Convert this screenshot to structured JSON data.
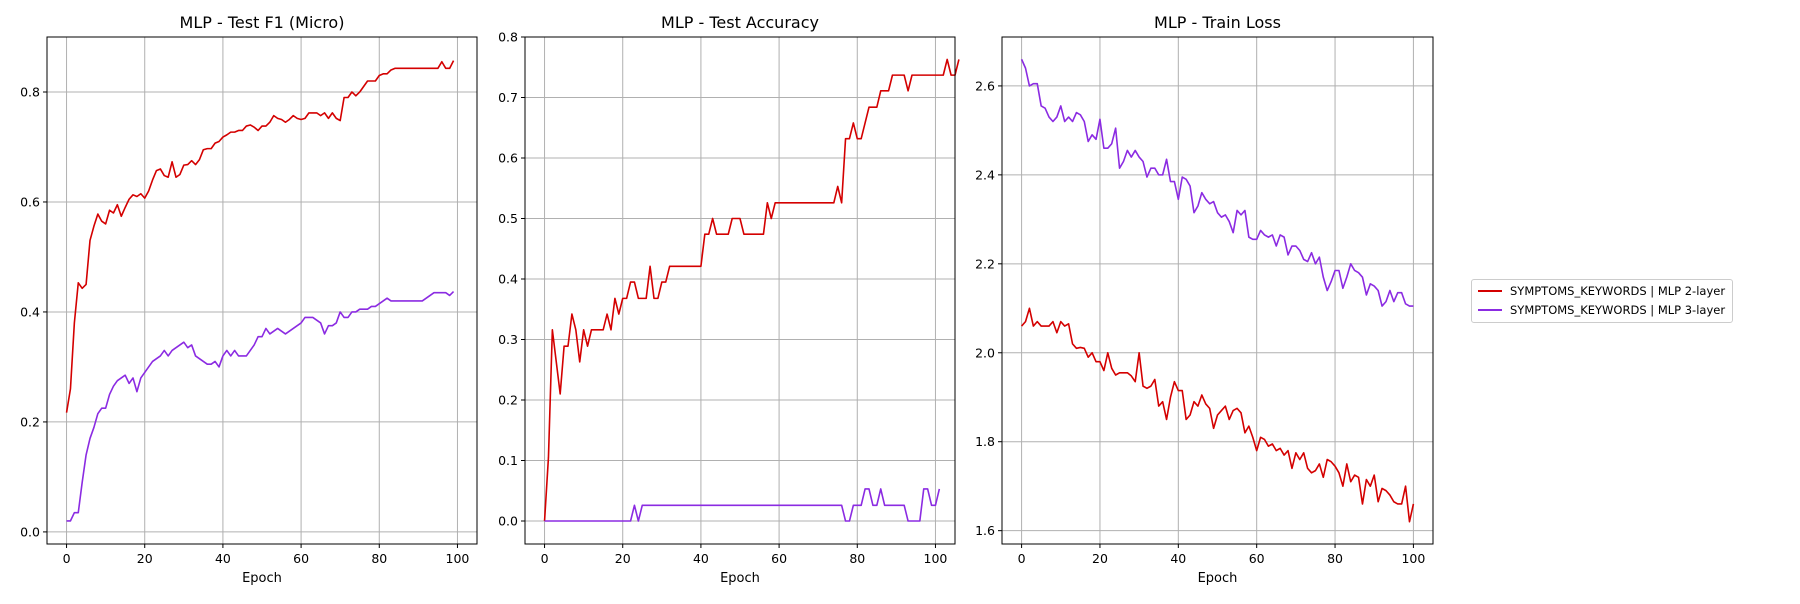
{
  "legend": {
    "items": [
      {
        "label": "SYMPTOMS_KEYWORDS | MLP 2-layer",
        "color": "#d40000"
      },
      {
        "label": "SYMPTOMS_KEYWORDS | MLP 3-layer",
        "color": "#8b2be2"
      }
    ]
  },
  "chart_data": [
    {
      "type": "line",
      "title": "MLP - Test F1 (Micro)",
      "xlabel": "Epoch",
      "ylabel": "",
      "xlim": [
        -5,
        105
      ],
      "ylim": [
        -0.022,
        0.9
      ],
      "xticks": [
        0,
        20,
        40,
        60,
        80,
        100
      ],
      "yticks": [
        0.0,
        0.2,
        0.4,
        0.6,
        0.8
      ],
      "ytick_labels": [
        "0.0",
        "0.2",
        "0.4",
        "0.6",
        "0.8"
      ],
      "grid": true,
      "series": [
        {
          "name": "SYMPTOMS_KEYWORDS | MLP 2-layer",
          "color": "#d40000",
          "values": [
            0.217,
            0.26,
            0.38,
            0.453,
            0.443,
            0.45,
            0.53,
            0.556,
            0.578,
            0.565,
            0.56,
            0.585,
            0.58,
            0.595,
            0.574,
            0.59,
            0.605,
            0.613,
            0.61,
            0.615,
            0.607,
            0.62,
            0.64,
            0.657,
            0.66,
            0.648,
            0.645,
            0.673,
            0.645,
            0.65,
            0.667,
            0.668,
            0.675,
            0.668,
            0.677,
            0.695,
            0.697,
            0.697,
            0.707,
            0.71,
            0.718,
            0.722,
            0.727,
            0.727,
            0.73,
            0.73,
            0.738,
            0.74,
            0.736,
            0.73,
            0.738,
            0.738,
            0.745,
            0.757,
            0.752,
            0.75,
            0.745,
            0.75,
            0.757,
            0.752,
            0.75,
            0.752,
            0.762,
            0.762,
            0.762,
            0.757,
            0.762,
            0.752,
            0.762,
            0.752,
            0.748,
            0.79,
            0.79,
            0.8,
            0.793,
            0.8,
            0.81,
            0.82,
            0.82,
            0.82,
            0.83,
            0.833,
            0.833,
            0.84,
            0.843,
            0.843,
            0.843,
            0.843,
            0.843,
            0.843,
            0.843,
            0.843,
            0.843,
            0.843,
            0.843,
            0.843,
            0.855,
            0.843,
            0.843,
            0.857
          ]
        },
        {
          "name": "SYMPTOMS_KEYWORDS | MLP 3-layer",
          "color": "#8b2be2",
          "values": [
            0.02,
            0.02,
            0.035,
            0.035,
            0.09,
            0.14,
            0.17,
            0.19,
            0.215,
            0.225,
            0.225,
            0.25,
            0.265,
            0.275,
            0.28,
            0.285,
            0.27,
            0.28,
            0.255,
            0.28,
            0.29,
            0.3,
            0.31,
            0.315,
            0.32,
            0.33,
            0.32,
            0.33,
            0.335,
            0.34,
            0.345,
            0.335,
            0.34,
            0.32,
            0.315,
            0.31,
            0.305,
            0.305,
            0.31,
            0.3,
            0.32,
            0.33,
            0.32,
            0.33,
            0.32,
            0.32,
            0.32,
            0.33,
            0.34,
            0.355,
            0.355,
            0.37,
            0.36,
            0.365,
            0.37,
            0.365,
            0.36,
            0.365,
            0.37,
            0.375,
            0.38,
            0.39,
            0.39,
            0.39,
            0.385,
            0.38,
            0.36,
            0.375,
            0.375,
            0.38,
            0.4,
            0.39,
            0.39,
            0.4,
            0.4,
            0.405,
            0.405,
            0.405,
            0.41,
            0.41,
            0.415,
            0.42,
            0.425,
            0.42,
            0.42,
            0.42,
            0.42,
            0.42,
            0.42,
            0.42,
            0.42,
            0.42,
            0.425,
            0.43,
            0.435,
            0.435,
            0.435,
            0.435,
            0.43,
            0.437
          ]
        }
      ]
    },
    {
      "type": "line",
      "title": "MLP - Test Accuracy",
      "xlabel": "Epoch",
      "ylabel": "",
      "xlim": [
        -5,
        105
      ],
      "ylim": [
        -0.038,
        0.8
      ],
      "xticks": [
        0,
        20,
        40,
        60,
        80,
        100
      ],
      "yticks": [
        0.0,
        0.1,
        0.2,
        0.3,
        0.4,
        0.5,
        0.6,
        0.7,
        0.8
      ],
      "ytick_labels": [
        "0.0",
        "0.1",
        "0.2",
        "0.3",
        "0.4",
        "0.5",
        "0.6",
        "0.7",
        "0.8"
      ],
      "grid": true,
      "series": [
        {
          "name": "SYMPTOMS_KEYWORDS | MLP 2-layer",
          "color": "#d40000",
          "values": [
            0.0,
            0.105,
            0.316,
            0.263,
            0.21,
            0.289,
            0.289,
            0.342,
            0.316,
            0.263,
            0.316,
            0.289,
            0.316,
            0.316,
            0.316,
            0.316,
            0.342,
            0.316,
            0.368,
            0.342,
            0.368,
            0.368,
            0.395,
            0.395,
            0.368,
            0.368,
            0.368,
            0.421,
            0.368,
            0.368,
            0.395,
            0.395,
            0.421,
            0.421,
            0.421,
            0.421,
            0.421,
            0.421,
            0.421,
            0.421,
            0.421,
            0.474,
            0.474,
            0.5,
            0.474,
            0.474,
            0.474,
            0.474,
            0.5,
            0.5,
            0.5,
            0.474,
            0.474,
            0.474,
            0.474,
            0.474,
            0.474,
            0.526,
            0.5,
            0.526,
            0.526,
            0.526,
            0.526,
            0.526,
            0.526,
            0.526,
            0.526,
            0.526,
            0.526,
            0.526,
            0.526,
            0.526,
            0.526,
            0.526,
            0.526,
            0.553,
            0.526,
            0.632,
            0.632,
            0.658,
            0.632,
            0.632,
            0.658,
            0.684,
            0.684,
            0.684,
            0.711,
            0.711,
            0.711,
            0.737,
            0.737,
            0.737,
            0.737,
            0.711,
            0.737,
            0.737,
            0.737,
            0.737,
            0.737,
            0.737,
            0.737,
            0.737,
            0.737,
            0.763,
            0.737,
            0.737,
            0.763
          ]
        },
        {
          "name": "SYMPTOMS_KEYWORDS | MLP 3-layer",
          "color": "#8b2be2",
          "values": [
            0.0,
            0.0,
            0.0,
            0.0,
            0.0,
            0.0,
            0.0,
            0.0,
            0.0,
            0.0,
            0.0,
            0.0,
            0.0,
            0.0,
            0.0,
            0.0,
            0.0,
            0.0,
            0.0,
            0.0,
            0.0,
            0.0,
            0.0,
            0.026,
            0.0,
            0.026,
            0.026,
            0.026,
            0.026,
            0.026,
            0.026,
            0.026,
            0.026,
            0.026,
            0.026,
            0.026,
            0.026,
            0.026,
            0.026,
            0.026,
            0.026,
            0.026,
            0.026,
            0.026,
            0.026,
            0.026,
            0.026,
            0.026,
            0.026,
            0.026,
            0.026,
            0.026,
            0.026,
            0.026,
            0.026,
            0.026,
            0.026,
            0.026,
            0.026,
            0.026,
            0.026,
            0.026,
            0.026,
            0.026,
            0.026,
            0.026,
            0.026,
            0.026,
            0.026,
            0.026,
            0.026,
            0.026,
            0.026,
            0.026,
            0.026,
            0.026,
            0.026,
            0.0,
            0.0,
            0.026,
            0.026,
            0.026,
            0.053,
            0.053,
            0.026,
            0.026,
            0.053,
            0.026,
            0.026,
            0.026,
            0.026,
            0.026,
            0.026,
            0.0,
            0.0,
            0.0,
            0.0,
            0.053,
            0.053,
            0.026,
            0.026,
            0.053
          ]
        }
      ]
    },
    {
      "type": "line",
      "title": "MLP - Train Loss",
      "xlabel": "Epoch",
      "ylabel": "",
      "xlim": [
        -5,
        105
      ],
      "ylim": [
        1.57,
        2.71
      ],
      "xticks": [
        0,
        20,
        40,
        60,
        80,
        100
      ],
      "yticks": [
        1.6,
        1.8,
        2.0,
        2.2,
        2.4,
        2.6
      ],
      "ytick_labels": [
        "1.6",
        "1.8",
        "2.0",
        "2.2",
        "2.4",
        "2.6"
      ],
      "grid": true,
      "series": [
        {
          "name": "SYMPTOMS_KEYWORDS | MLP 2-layer",
          "color": "#d40000",
          "values": [
            2.06,
            2.07,
            2.1,
            2.06,
            2.07,
            2.06,
            2.06,
            2.06,
            2.07,
            2.045,
            2.07,
            2.06,
            2.065,
            2.02,
            2.01,
            2.012,
            2.01,
            1.99,
            2.0,
            1.98,
            1.98,
            1.96,
            2.0,
            1.965,
            1.95,
            1.955,
            1.955,
            1.955,
            1.948,
            1.935,
            2.0,
            1.925,
            1.92,
            1.925,
            1.94,
            1.88,
            1.89,
            1.85,
            1.9,
            1.935,
            1.915,
            1.915,
            1.85,
            1.86,
            1.89,
            1.88,
            1.905,
            1.885,
            1.875,
            1.83,
            1.86,
            1.87,
            1.88,
            1.85,
            1.87,
            1.875,
            1.865,
            1.82,
            1.835,
            1.81,
            1.78,
            1.81,
            1.805,
            1.79,
            1.795,
            1.78,
            1.785,
            1.77,
            1.78,
            1.74,
            1.775,
            1.76,
            1.775,
            1.74,
            1.73,
            1.735,
            1.75,
            1.72,
            1.76,
            1.755,
            1.745,
            1.73,
            1.7,
            1.75,
            1.71,
            1.725,
            1.72,
            1.66,
            1.715,
            1.7,
            1.725,
            1.665,
            1.695,
            1.69,
            1.68,
            1.665,
            1.66,
            1.66,
            1.7,
            1.62,
            1.66
          ]
        },
        {
          "name": "SYMPTOMS_KEYWORDS | MLP 3-layer",
          "color": "#8b2be2",
          "values": [
            2.66,
            2.64,
            2.6,
            2.605,
            2.605,
            2.555,
            2.55,
            2.53,
            2.52,
            2.53,
            2.555,
            2.52,
            2.53,
            2.52,
            2.54,
            2.535,
            2.52,
            2.475,
            2.49,
            2.48,
            2.525,
            2.46,
            2.46,
            2.47,
            2.505,
            2.415,
            2.43,
            2.455,
            2.44,
            2.455,
            2.44,
            2.43,
            2.395,
            2.415,
            2.415,
            2.4,
            2.4,
            2.435,
            2.385,
            2.385,
            2.345,
            2.395,
            2.39,
            2.375,
            2.315,
            2.33,
            2.36,
            2.345,
            2.335,
            2.34,
            2.315,
            2.305,
            2.31,
            2.295,
            2.27,
            2.32,
            2.31,
            2.32,
            2.26,
            2.255,
            2.255,
            2.275,
            2.265,
            2.26,
            2.265,
            2.24,
            2.265,
            2.26,
            2.22,
            2.24,
            2.24,
            2.23,
            2.21,
            2.205,
            2.225,
            2.2,
            2.215,
            2.17,
            2.14,
            2.16,
            2.185,
            2.185,
            2.145,
            2.17,
            2.2,
            2.185,
            2.18,
            2.17,
            2.13,
            2.155,
            2.15,
            2.14,
            2.105,
            2.115,
            2.14,
            2.115,
            2.135,
            2.135,
            2.11,
            2.105,
            2.105
          ]
        }
      ]
    }
  ]
}
